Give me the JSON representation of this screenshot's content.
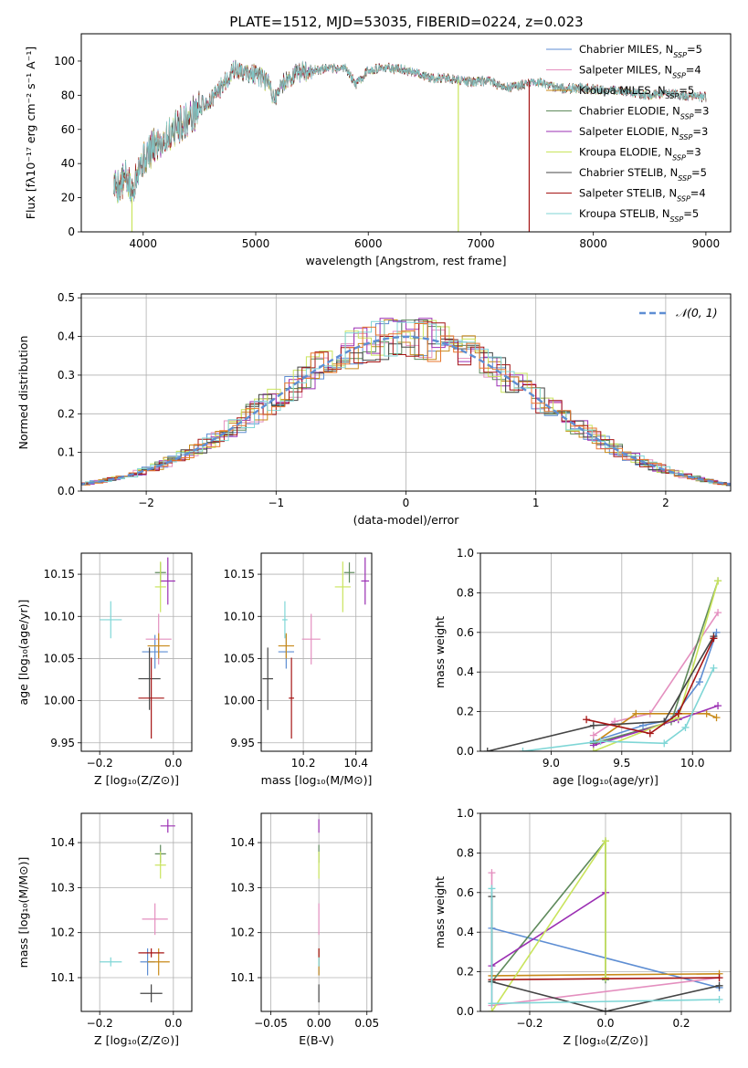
{
  "figure_title": "PLATE=1512, MJD=53035, FIBERID=0224, z=0.023",
  "colors": {
    "chabrier_miles": "#5e8ed3",
    "salpeter_miles": "#e48fbf",
    "kroupa_miles": "#c88a1a",
    "chabrier_elodie": "#5f8a5c",
    "salpeter_elodie": "#9b2fb3",
    "kroupa_elodie": "#c9e45c",
    "chabrier_stelib": "#444444",
    "salpeter_stelib": "#a51515",
    "kroupa_stelib": "#7fd6d6",
    "hist_orange": "#e8762c",
    "normal_curve": "#5e8ed3"
  },
  "chart_data": [
    {
      "id": "spectrum",
      "type": "line",
      "xlabel": "wavelength [Angstrom, rest frame]",
      "ylabel": "Flux [fλ10⁻¹⁷ erg cm⁻² s⁻¹ A⁻¹]",
      "xlim": [
        3450,
        9220
      ],
      "ylim": [
        0,
        116
      ],
      "xticks": [
        4000,
        5000,
        6000,
        7000,
        8000,
        9000
      ],
      "yticks": [
        0,
        20,
        40,
        60,
        80,
        100
      ],
      "legend_position": "top-right",
      "legend": [
        {
          "label": "Chabrier MILES, N",
          "sub": "SSP",
          "suffix": "=5",
          "color_key": "chabrier_miles"
        },
        {
          "label": "Salpeter MILES, N",
          "sub": "SSP",
          "suffix": "=4",
          "color_key": "salpeter_miles"
        },
        {
          "label": "Kroupa MILES, N",
          "sub": "SSP",
          "suffix": "=5",
          "color_key": "kroupa_miles"
        },
        {
          "label": "Chabrier ELODIE, N",
          "sub": "SSP",
          "suffix": "=3",
          "color_key": "chabrier_elodie"
        },
        {
          "label": "Salpeter ELODIE, N",
          "sub": "SSP",
          "suffix": "=3",
          "color_key": "salpeter_elodie"
        },
        {
          "label": "Kroupa ELODIE, N",
          "sub": "SSP",
          "suffix": "=3",
          "color_key": "kroupa_elodie"
        },
        {
          "label": "Chabrier STELIB, N",
          "sub": "SSP",
          "suffix": "=5",
          "color_key": "chabrier_stelib"
        },
        {
          "label": "Salpeter STELIB, N",
          "sub": "SSP",
          "suffix": "=4",
          "color_key": "salpeter_stelib"
        },
        {
          "label": "Kroupa STELIB, N",
          "sub": "SSP",
          "suffix": "=5",
          "color_key": "kroupa_stelib"
        }
      ],
      "continuum": [
        [
          3740,
          28
        ],
        [
          3800,
          27
        ],
        [
          3850,
          32
        ],
        [
          3900,
          22
        ],
        [
          3950,
          38
        ],
        [
          4000,
          42
        ],
        [
          4100,
          50
        ],
        [
          4200,
          55
        ],
        [
          4300,
          62
        ],
        [
          4400,
          66
        ],
        [
          4500,
          73
        ],
        [
          4600,
          77
        ],
        [
          4700,
          85
        ],
        [
          4800,
          95
        ],
        [
          4900,
          93
        ],
        [
          5000,
          92
        ],
        [
          5100,
          88
        ],
        [
          5170,
          78
        ],
        [
          5250,
          88
        ],
        [
          5400,
          94
        ],
        [
          5600,
          95
        ],
        [
          5800,
          96
        ],
        [
          5890,
          86
        ],
        [
          6000,
          95
        ],
        [
          6200,
          96
        ],
        [
          6400,
          94
        ],
        [
          6563,
          90
        ],
        [
          6700,
          90
        ],
        [
          6900,
          88
        ],
        [
          7000,
          88
        ],
        [
          7100,
          88
        ],
        [
          7200,
          84
        ],
        [
          7300,
          85
        ],
        [
          7500,
          88
        ],
        [
          7700,
          84
        ],
        [
          7900,
          84
        ],
        [
          8100,
          83
        ],
        [
          8300,
          82
        ],
        [
          8500,
          80
        ],
        [
          8700,
          81
        ],
        [
          8900,
          79
        ],
        [
          9000,
          79
        ]
      ],
      "dropouts": [
        {
          "x": 3900,
          "ymin": 0,
          "ymax": 20,
          "color_key": "kroupa_elodie"
        },
        {
          "x": 6800,
          "ymin": 0,
          "ymax": 89,
          "color_key": "kroupa_elodie"
        },
        {
          "x": 7430,
          "ymin": 0,
          "ymax": 88,
          "color_key": "salpeter_stelib"
        }
      ]
    },
    {
      "id": "residual_hist",
      "type": "step",
      "xlabel": "(data-model)/error",
      "ylabel": "Normed distribution",
      "xlim": [
        -2.5,
        2.5
      ],
      "ylim": [
        0,
        0.51
      ],
      "xticks": [
        -2,
        -1,
        0,
        1,
        2
      ],
      "yticks": [
        0,
        0.1,
        0.2,
        0.3,
        0.4,
        0.5
      ],
      "grid": true,
      "bin_width": 0.1,
      "legend_position": "top-right",
      "legend": [
        {
          "label": "𝒩(0, 1)",
          "style": "dashed",
          "color_key": "normal_curve"
        }
      ],
      "normal_curve": {
        "mean": 0,
        "sigma": 1
      }
    },
    {
      "id": "age_vs_z",
      "type": "errorbar",
      "xlabel": "Z [log₁₀(Z/Z⊙)]",
      "ylabel": "age  [log₁₀(age/yr)]",
      "xlim": [
        -0.25,
        0.05
      ],
      "ylim": [
        9.94,
        10.175
      ],
      "xticks": [
        -0.2,
        0.0
      ],
      "yticks": [
        9.95,
        10.0,
        10.05,
        10.1,
        10.15
      ],
      "grid": true,
      "points": [
        {
          "model": "chabrier_miles",
          "x": -0.05,
          "y": 10.058,
          "xerr": 0.035,
          "yerr": 0.02
        },
        {
          "model": "salpeter_miles",
          "x": -0.04,
          "y": 10.073,
          "xerr": 0.035,
          "yerr": 0.03
        },
        {
          "model": "kroupa_miles",
          "x": -0.04,
          "y": 10.065,
          "xerr": 0.03,
          "yerr": 0.015
        },
        {
          "model": "chabrier_elodie",
          "x": -0.035,
          "y": 10.152,
          "xerr": 0.015,
          "yerr": 0.012
        },
        {
          "model": "salpeter_elodie",
          "x": -0.015,
          "y": 10.142,
          "xerr": 0.02,
          "yerr": 0.028
        },
        {
          "model": "kroupa_elodie",
          "x": -0.035,
          "y": 10.135,
          "xerr": 0.015,
          "yerr": 0.03
        },
        {
          "model": "chabrier_stelib",
          "x": -0.065,
          "y": 10.026,
          "xerr": 0.03,
          "yerr": 0.037
        },
        {
          "model": "salpeter_stelib",
          "x": -0.06,
          "y": 10.003,
          "xerr": 0.035,
          "yerr": 0.048
        },
        {
          "model": "kroupa_stelib",
          "x": -0.17,
          "y": 10.096,
          "xerr": 0.03,
          "yerr": 0.022
        }
      ]
    },
    {
      "id": "age_vs_mass",
      "type": "errorbar",
      "xlabel": "mass [log₁₀(M/M⊙)]",
      "ylabel": "",
      "xlim": [
        10.04,
        10.46
      ],
      "ylim": [
        9.94,
        10.175
      ],
      "xticks": [
        10.2,
        10.4
      ],
      "yticks": [
        9.95,
        10.0,
        10.05,
        10.1,
        10.15
      ],
      "grid": true,
      "points": [
        {
          "model": "chabrier_miles",
          "x": 10.135,
          "y": 10.058,
          "xerr": 0.03,
          "yerr": 0.02
        },
        {
          "model": "salpeter_miles",
          "x": 10.23,
          "y": 10.073,
          "xerr": 0.035,
          "yerr": 0.03
        },
        {
          "model": "kroupa_miles",
          "x": 10.135,
          "y": 10.065,
          "xerr": 0.03,
          "yerr": 0.015
        },
        {
          "model": "chabrier_elodie",
          "x": 10.375,
          "y": 10.152,
          "xerr": 0.02,
          "yerr": 0.012
        },
        {
          "model": "salpeter_elodie",
          "x": 10.435,
          "y": 10.142,
          "xerr": 0.015,
          "yerr": 0.028
        },
        {
          "model": "kroupa_elodie",
          "x": 10.35,
          "y": 10.135,
          "xerr": 0.03,
          "yerr": 0.03
        },
        {
          "model": "chabrier_stelib",
          "x": 10.065,
          "y": 10.026,
          "xerr": 0.02,
          "yerr": 0.037
        },
        {
          "model": "salpeter_stelib",
          "x": 10.155,
          "y": 10.003,
          "xerr": 0.01,
          "yerr": 0.048
        },
        {
          "model": "kroupa_stelib",
          "x": 10.13,
          "y": 10.096,
          "xerr": 0.01,
          "yerr": 0.022
        }
      ]
    },
    {
      "id": "weight_vs_age",
      "type": "line",
      "xlabel": "age  [log₁₀(age/yr)]",
      "ylabel": "mass weight",
      "xlim": [
        8.5,
        10.27
      ],
      "ylim": [
        0,
        1.0
      ],
      "xticks": [
        9.0,
        9.5,
        10.0
      ],
      "yticks": [
        0,
        0.2,
        0.4,
        0.6,
        0.8,
        1.0
      ],
      "grid": true,
      "series": [
        {
          "model": "chabrier_miles",
          "x": [
            9.3,
            9.65,
            9.85,
            10.05,
            10.17
          ],
          "y": [
            0.05,
            0.13,
            0.16,
            0.35,
            0.6
          ]
        },
        {
          "model": "salpeter_miles",
          "x": [
            9.3,
            9.45,
            9.7,
            10.18
          ],
          "y": [
            0.08,
            0.15,
            0.19,
            0.7
          ]
        },
        {
          "model": "kroupa_miles",
          "x": [
            9.3,
            9.6,
            9.9,
            10.1,
            10.17
          ],
          "y": [
            0.04,
            0.19,
            0.19,
            0.19,
            0.17
          ]
        },
        {
          "model": "chabrier_elodie",
          "x": [
            9.3,
            9.85,
            10.18
          ],
          "y": [
            0.04,
            0.15,
            0.86
          ]
        },
        {
          "model": "salpeter_elodie",
          "x": [
            9.3,
            9.9,
            10.18
          ],
          "y": [
            0.03,
            0.16,
            0.23
          ]
        },
        {
          "model": "kroupa_elodie",
          "x": [
            9.3,
            9.9,
            10.18
          ],
          "y": [
            0.0,
            0.17,
            0.86
          ]
        },
        {
          "model": "chabrier_stelib",
          "x": [
            8.55,
            9.3,
            9.8,
            10.15
          ],
          "y": [
            0.0,
            0.13,
            0.15,
            0.58
          ]
        },
        {
          "model": "salpeter_stelib",
          "x": [
            9.25,
            9.7,
            9.9,
            10.15
          ],
          "y": [
            0.16,
            0.09,
            0.19,
            0.57
          ]
        },
        {
          "model": "kroupa_stelib",
          "x": [
            8.8,
            9.35,
            9.8,
            9.95,
            10.15
          ],
          "y": [
            0.0,
            0.05,
            0.04,
            0.12,
            0.42
          ]
        }
      ]
    },
    {
      "id": "mass_vs_z",
      "type": "errorbar",
      "xlabel": "Z [log₁₀(Z/Z⊙)]",
      "ylabel": "mass [log₁₀(M/M⊙)]",
      "xlim": [
        -0.25,
        0.05
      ],
      "ylim": [
        10.025,
        10.465
      ],
      "xticks": [
        -0.2,
        0.0
      ],
      "yticks": [
        10.1,
        10.2,
        10.3,
        10.4
      ],
      "grid": true,
      "points": [
        {
          "model": "chabrier_miles",
          "x": -0.07,
          "y": 10.135,
          "xerr": 0.02,
          "yerr": 0.03
        },
        {
          "model": "salpeter_miles",
          "x": -0.05,
          "y": 10.23,
          "xerr": 0.035,
          "yerr": 0.035
        },
        {
          "model": "kroupa_miles",
          "x": -0.04,
          "y": 10.135,
          "xerr": 0.03,
          "yerr": 0.03
        },
        {
          "model": "chabrier_elodie",
          "x": -0.035,
          "y": 10.375,
          "xerr": 0.015,
          "yerr": 0.02
        },
        {
          "model": "salpeter_elodie",
          "x": -0.015,
          "y": 10.437,
          "xerr": 0.02,
          "yerr": 0.015
        },
        {
          "model": "kroupa_elodie",
          "x": -0.035,
          "y": 10.35,
          "xerr": 0.015,
          "yerr": 0.03
        },
        {
          "model": "chabrier_stelib",
          "x": -0.06,
          "y": 10.065,
          "xerr": 0.03,
          "yerr": 0.02
        },
        {
          "model": "salpeter_stelib",
          "x": -0.06,
          "y": 10.155,
          "xerr": 0.035,
          "yerr": 0.01
        },
        {
          "model": "kroupa_stelib",
          "x": -0.17,
          "y": 10.135,
          "xerr": 0.03,
          "yerr": 0.01
        }
      ]
    },
    {
      "id": "mass_vs_ebv",
      "type": "errorbar",
      "xlabel": "E(B-V)",
      "ylabel": "",
      "xlim": [
        -0.06,
        0.055
      ],
      "ylim": [
        10.025,
        10.465
      ],
      "xticks": [
        -0.05,
        0.0,
        0.05
      ],
      "yticks": [
        10.1,
        10.2,
        10.3,
        10.4
      ],
      "grid": true,
      "points": [
        {
          "model": "chabrier_miles",
          "x": 0,
          "y": 10.135,
          "xerr": 0,
          "yerr": 0.03
        },
        {
          "model": "salpeter_miles",
          "x": 0,
          "y": 10.23,
          "xerr": 0,
          "yerr": 0.035
        },
        {
          "model": "kroupa_miles",
          "x": 0,
          "y": 10.135,
          "xerr": 0,
          "yerr": 0.03
        },
        {
          "model": "chabrier_elodie",
          "x": 0,
          "y": 10.375,
          "xerr": 0,
          "yerr": 0.02
        },
        {
          "model": "salpeter_elodie",
          "x": 0,
          "y": 10.437,
          "xerr": 0,
          "yerr": 0.015
        },
        {
          "model": "kroupa_elodie",
          "x": 0,
          "y": 10.35,
          "xerr": 0,
          "yerr": 0.03
        },
        {
          "model": "chabrier_stelib",
          "x": 0,
          "y": 10.065,
          "xerr": 0,
          "yerr": 0.02
        },
        {
          "model": "salpeter_stelib",
          "x": 0,
          "y": 10.155,
          "xerr": 0,
          "yerr": 0.01
        },
        {
          "model": "kroupa_stelib",
          "x": 0,
          "y": 10.135,
          "xerr": 0,
          "yerr": 0.01
        }
      ]
    },
    {
      "id": "weight_vs_z",
      "type": "line",
      "xlabel": "Z [log₁₀(Z/Z⊙)]",
      "ylabel": "mass weight",
      "xlim": [
        -0.33,
        0.33
      ],
      "ylim": [
        0,
        1.0
      ],
      "xticks": [
        -0.2,
        0.0,
        0.2
      ],
      "yticks": [
        0,
        0.2,
        0.4,
        0.6,
        0.8,
        1.0
      ],
      "grid": true,
      "series": [
        {
          "model": "chabrier_miles",
          "x": [
            -0.3,
            0.3
          ],
          "y": [
            0.42,
            0.12
          ]
        },
        {
          "model": "salpeter_miles",
          "x": [
            -0.3,
            -0.3,
            0.3
          ],
          "y": [
            0.7,
            0.03,
            0.17
          ]
        },
        {
          "model": "kroupa_miles",
          "x": [
            -0.3,
            0.3
          ],
          "y": [
            0.18,
            0.19
          ]
        },
        {
          "model": "chabrier_elodie",
          "x": [
            -0.3,
            0.0,
            0.0
          ],
          "y": [
            0.15,
            0.86,
            0.16
          ]
        },
        {
          "model": "salpeter_elodie",
          "x": [
            -0.3,
            0.0
          ],
          "y": [
            0.23,
            0.6
          ]
        },
        {
          "model": "kroupa_elodie",
          "x": [
            -0.3,
            0.0,
            0.0
          ],
          "y": [
            0.0,
            0.86,
            0.17
          ]
        },
        {
          "model": "chabrier_stelib",
          "x": [
            -0.3,
            -0.3,
            0.0,
            0.3
          ],
          "y": [
            0.58,
            0.15,
            0.0,
            0.13
          ]
        },
        {
          "model": "salpeter_stelib",
          "x": [
            -0.3,
            0.3
          ],
          "y": [
            0.16,
            0.17
          ]
        },
        {
          "model": "kroupa_stelib",
          "x": [
            -0.3,
            -0.3,
            0.3
          ],
          "y": [
            0.62,
            0.04,
            0.06
          ]
        }
      ]
    }
  ]
}
